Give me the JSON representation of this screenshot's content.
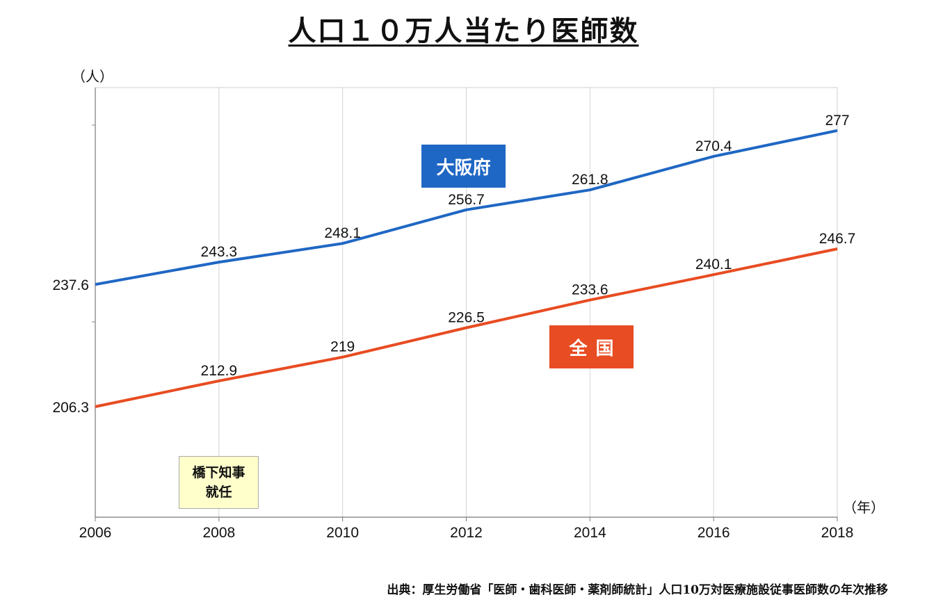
{
  "title": "人口１０万人当たり医師数",
  "source": "出典：厚生労働省「医師・歯科医師・薬剤師統計」人口10万対医療施設従事医師数の年次推移",
  "chart_data": {
    "type": "line",
    "x": [
      2006,
      2008,
      2010,
      2012,
      2014,
      2016,
      2018
    ],
    "x_tick_labels": [
      "2006",
      "2008",
      "2010",
      "2012",
      "2014",
      "2016",
      "2018"
    ],
    "xlabel": "（年）",
    "ylabel": "（人）",
    "ylim": [
      178,
      288
    ],
    "grid": true,
    "series": [
      {
        "name": "大阪府",
        "color": "#1f67c4",
        "values": [
          237.6,
          243.3,
          248.1,
          256.7,
          261.8,
          270.4,
          277
        ],
        "labels": [
          "237.6",
          "243.3",
          "248.1",
          "256.7",
          "261.8",
          "270.4",
          "277"
        ]
      },
      {
        "name": "全国",
        "color": "#e84c22",
        "values": [
          206.3,
          212.9,
          219,
          226.5,
          233.6,
          240.1,
          246.7
        ],
        "labels": [
          "206.3",
          "212.9",
          "219",
          "226.5",
          "233.6",
          "240.1",
          "246.7"
        ]
      }
    ],
    "annotation": {
      "line1": "橋下知事",
      "line2": "就任"
    }
  }
}
